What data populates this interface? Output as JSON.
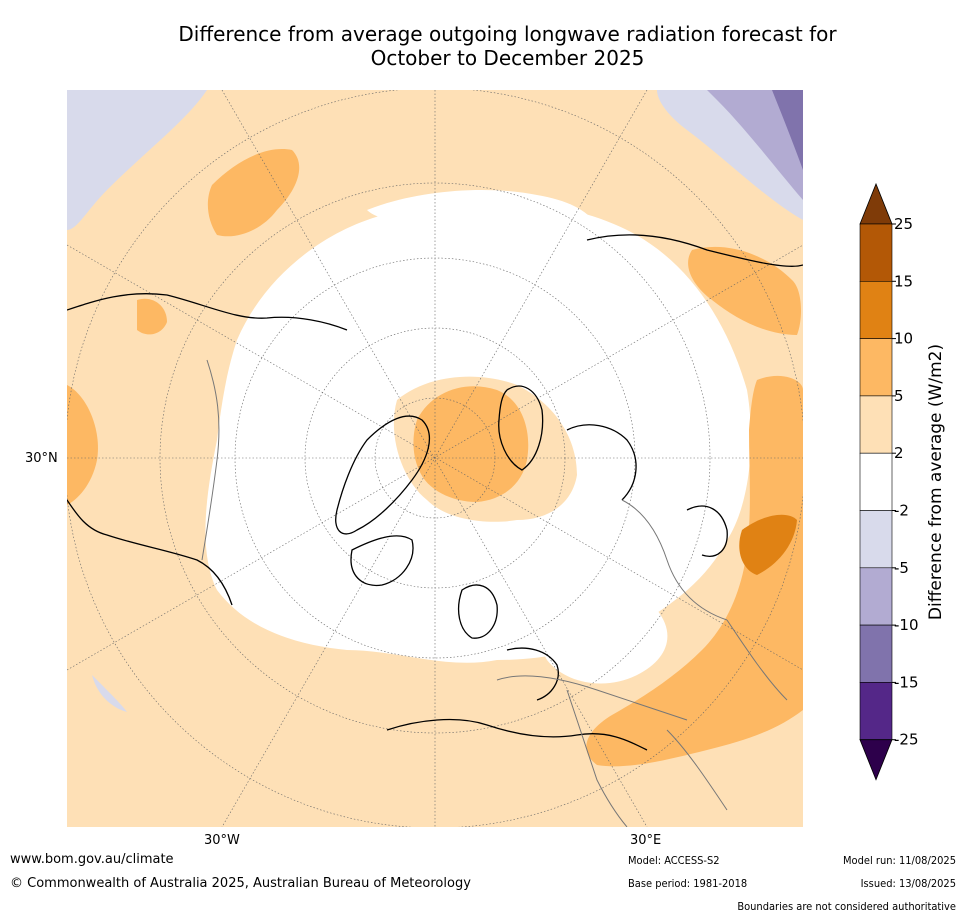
{
  "title": {
    "line1": "Difference from average outgoing longwave radiation forecast for",
    "line2": "October to December 2025"
  },
  "map": {
    "projection": "north-polar-stereographic",
    "lat_label": "30°N",
    "lon_labels": {
      "west": "30°W",
      "east": "30°E"
    }
  },
  "colorbar": {
    "title": "Difference from average (W/m2)",
    "ticks": [
      "25",
      "15",
      "10",
      "5",
      "2",
      "-2",
      "-5",
      "-10",
      "-15",
      "-25"
    ],
    "bins": [
      {
        "range": "<-25",
        "color": "#2d004b"
      },
      {
        "range": "-25 to -15",
        "color": "#542788"
      },
      {
        "range": "-15 to -10",
        "color": "#8073ac"
      },
      {
        "range": "-10 to -5",
        "color": "#b2abd2"
      },
      {
        "range": "-5 to -2",
        "color": "#d8daeb"
      },
      {
        "range": "-2 to 2",
        "color": "#ffffff"
      },
      {
        "range": "2 to 5",
        "color": "#fee0b6"
      },
      {
        "range": "5 to 10",
        "color": "#fdb863"
      },
      {
        "range": "10 to 15",
        "color": "#e08214"
      },
      {
        "range": "15 to 25",
        "color": "#b35806"
      },
      {
        "range": ">25",
        "color": "#7f3b08"
      }
    ]
  },
  "footer": {
    "url": "www.bom.gov.au/climate",
    "copyright": "© Commonwealth of Australia 2025, Australian Bureau of Meteorology",
    "model": "Model: ACCESS-S2",
    "base_period": "Base period: 1981-2018",
    "model_run": "Model run: 11/08/2025",
    "issued": "Issued: 13/08/2025",
    "disclaimer": "Boundaries are not considered authoritative"
  }
}
